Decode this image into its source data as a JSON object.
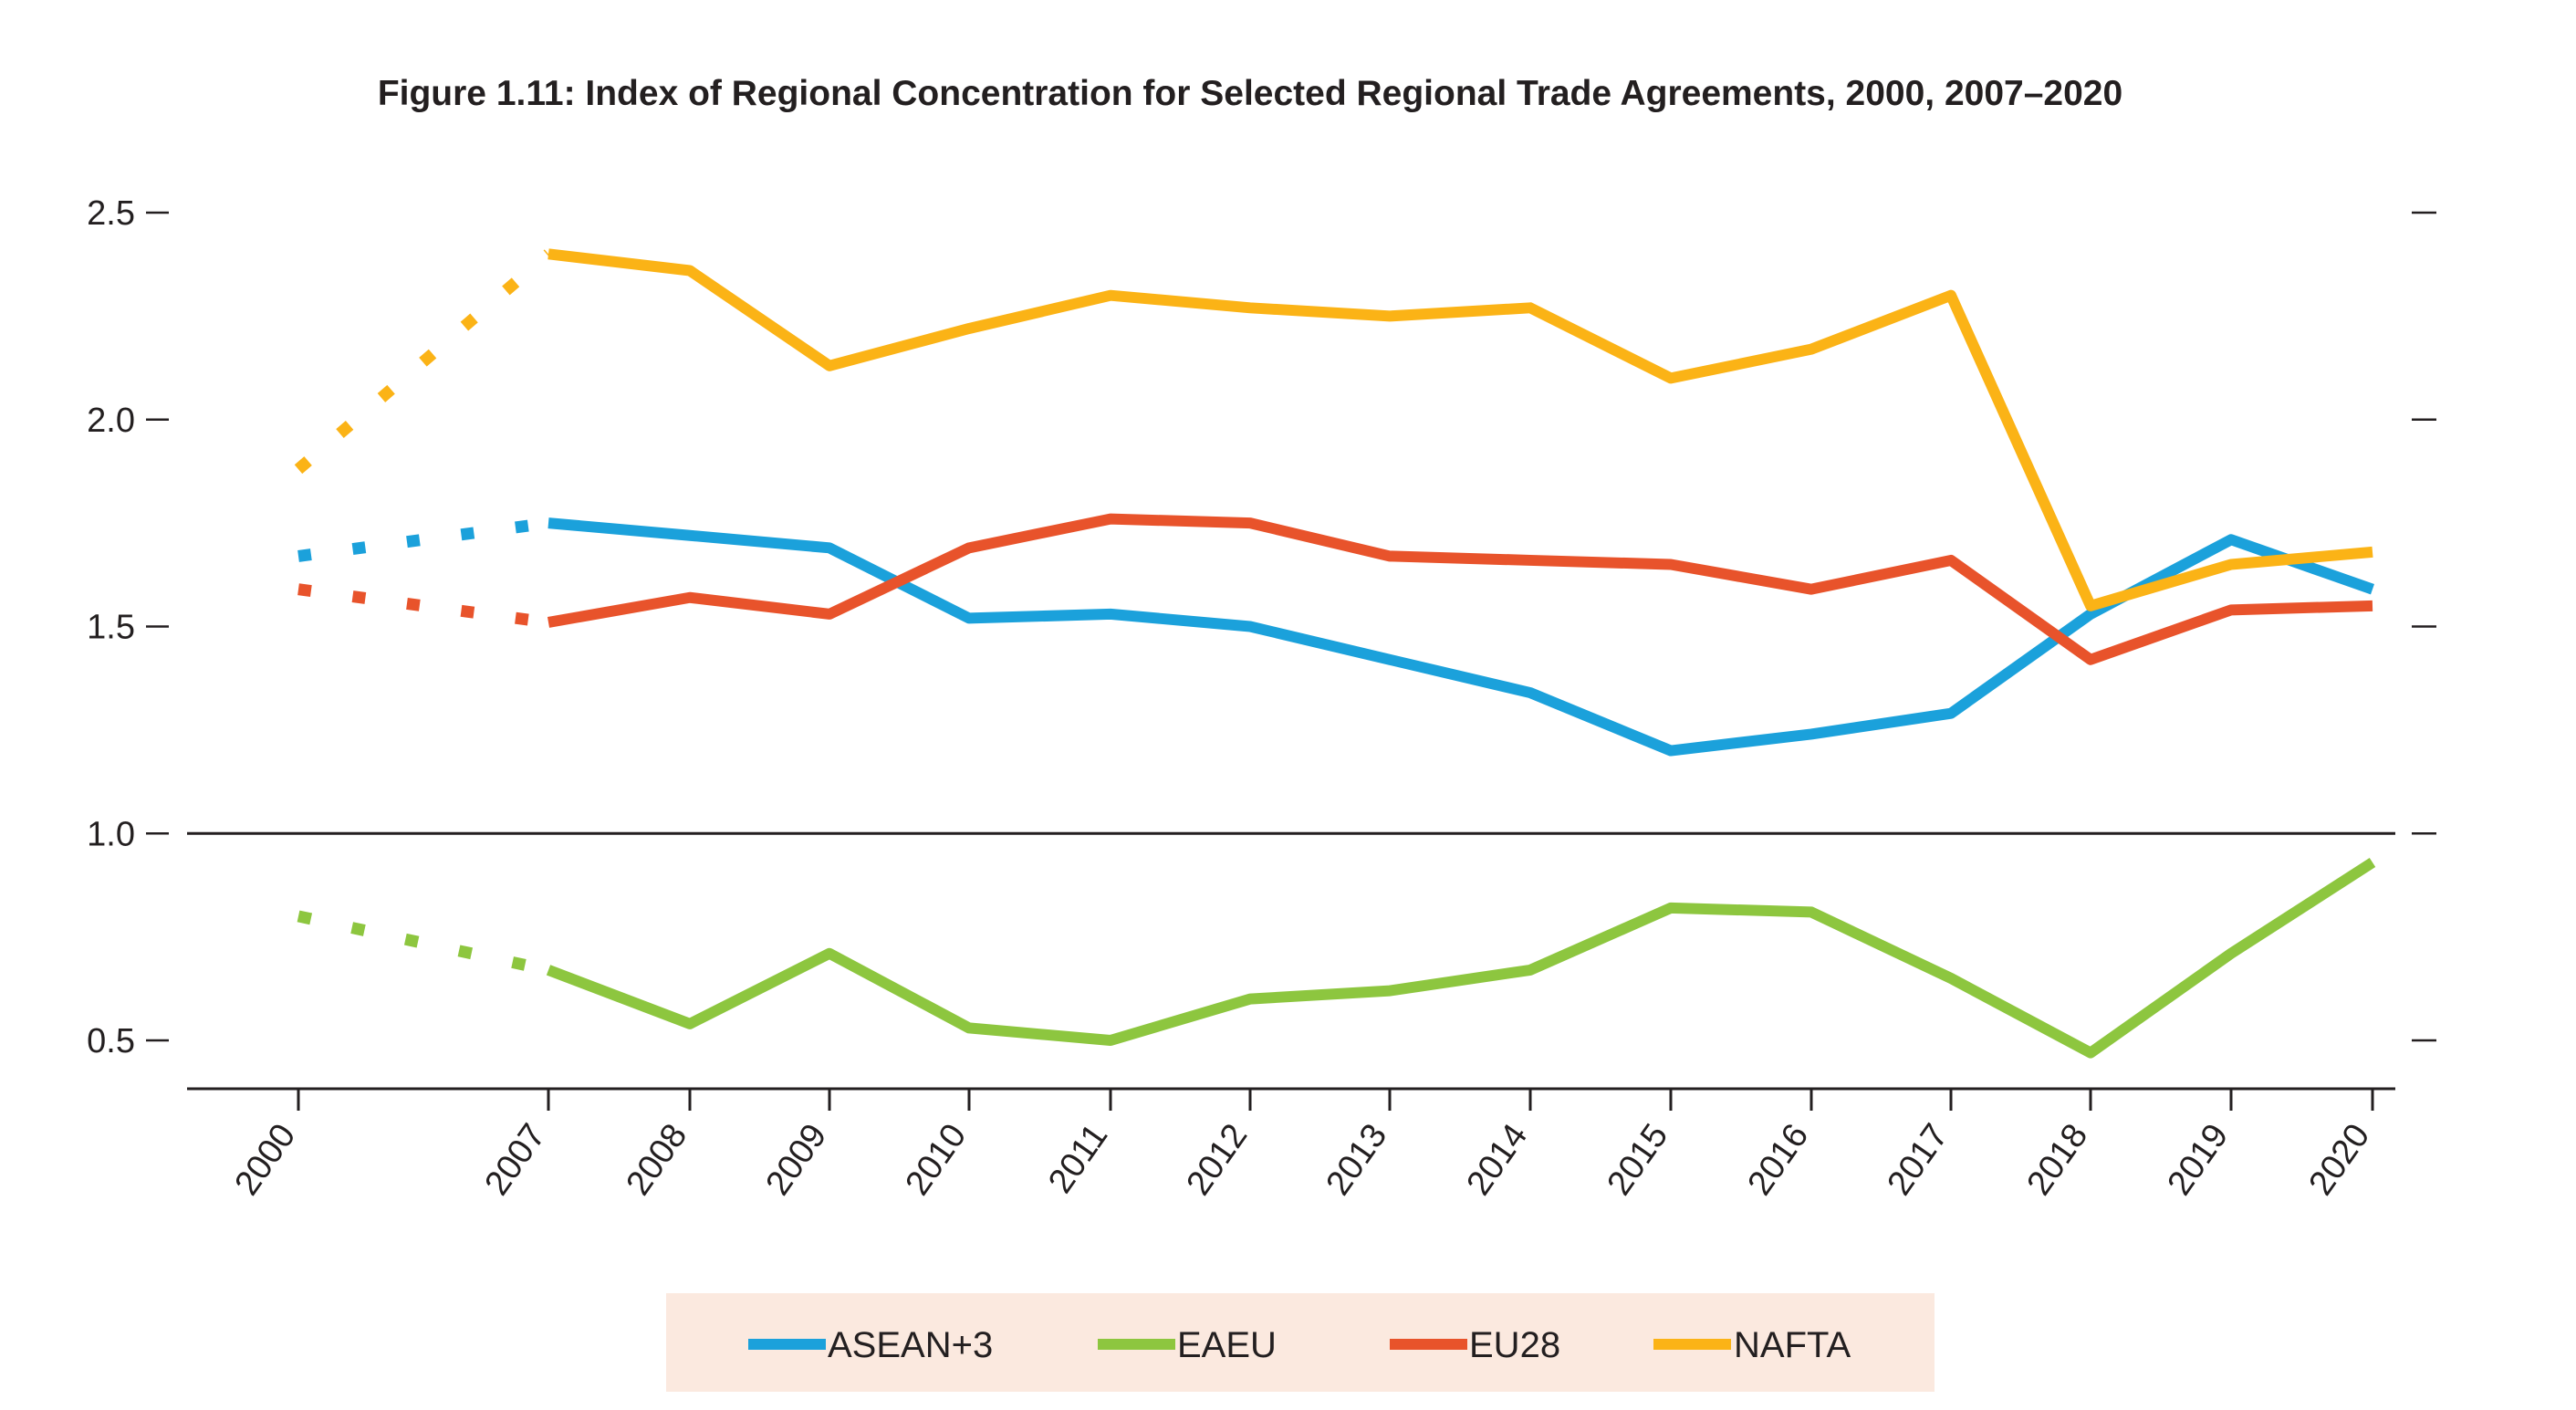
{
  "chart_data": {
    "type": "line",
    "title": "Figure 1.11: Index of Regional Concentration for Selected Regional Trade Agreements, 2000, 2007–2020",
    "xlabel": "",
    "ylabel": "",
    "x": [
      "2000",
      "2007",
      "2008",
      "2009",
      "2010",
      "2011",
      "2012",
      "2013",
      "2014",
      "2015",
      "2016",
      "2017",
      "2018",
      "2019",
      "2020"
    ],
    "ylim": [
      0.5,
      2.5
    ],
    "yticks": [
      "2.5",
      "2.0",
      "1.5",
      "1.0",
      "0.5"
    ],
    "reference_line": 1.0,
    "gap_segment_style": "dotted between 2000 and 2007",
    "legend_position": "bottom",
    "legend_background": "#fbe9df",
    "series": [
      {
        "name": "ASEAN+3",
        "color": "#1ba1db",
        "values": [
          1.67,
          1.75,
          1.72,
          1.69,
          1.52,
          1.53,
          1.5,
          1.42,
          1.34,
          1.2,
          1.24,
          1.29,
          1.53,
          1.71,
          1.59
        ]
      },
      {
        "name": "EAEU",
        "color": "#8dc63f",
        "values": [
          0.8,
          0.67,
          0.54,
          0.71,
          0.53,
          0.5,
          0.6,
          0.62,
          0.67,
          0.82,
          0.81,
          0.65,
          0.47,
          0.71,
          0.93
        ]
      },
      {
        "name": "EU28",
        "color": "#e8532b",
        "values": [
          1.59,
          1.51,
          1.57,
          1.53,
          1.69,
          1.76,
          1.75,
          1.67,
          1.66,
          1.65,
          1.59,
          1.66,
          1.42,
          1.54,
          1.55
        ]
      },
      {
        "name": "NAFTA",
        "color": "#fbb316",
        "values": [
          1.88,
          2.4,
          2.36,
          2.13,
          2.22,
          2.3,
          2.27,
          2.25,
          2.27,
          2.1,
          2.17,
          2.3,
          1.55,
          1.65,
          1.68
        ]
      }
    ]
  }
}
